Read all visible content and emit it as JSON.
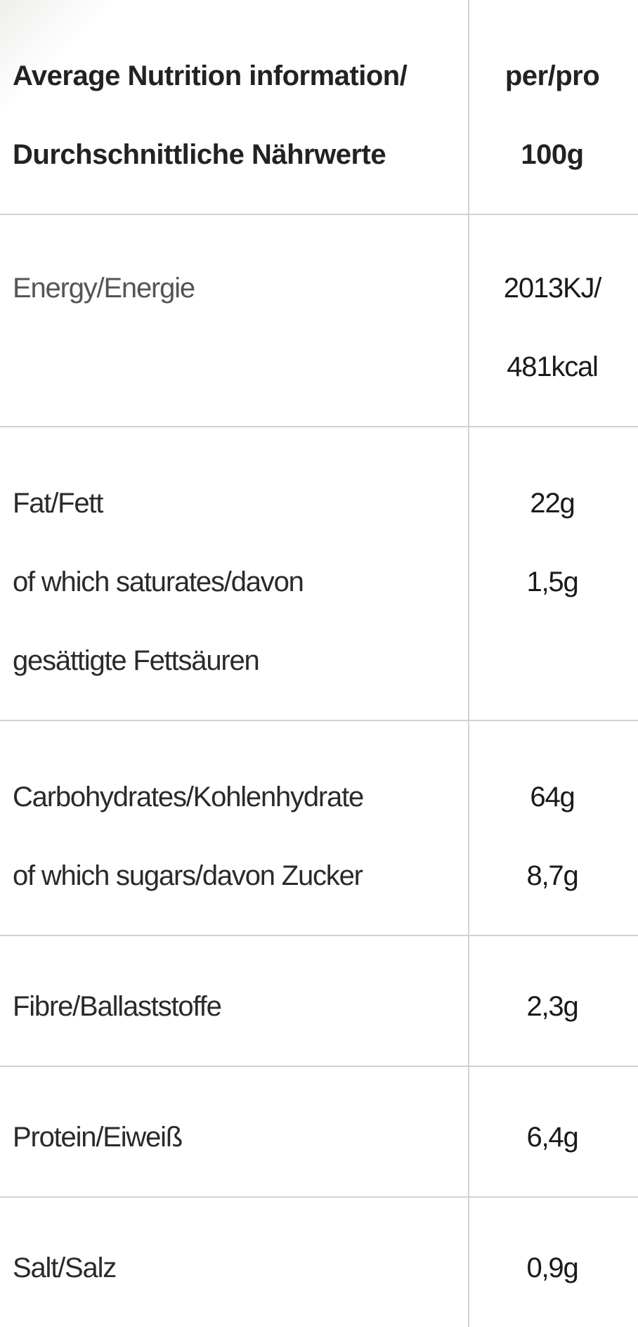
{
  "header": {
    "label_line1": "Average Nutrition information/",
    "label_line2": "Durchschnittliche Nährwerte",
    "value_line1": "per/pro",
    "value_line2": "100g"
  },
  "rows": [
    {
      "label_lines": [
        "Energy/Energie"
      ],
      "value_lines": [
        "2013KJ/",
        "481kcal"
      ]
    },
    {
      "label_lines": [
        "Fat/Fett",
        "of which saturates/davon",
        "gesättigte Fettsäuren"
      ],
      "value_lines": [
        "22g",
        "1,5g"
      ]
    },
    {
      "label_lines": [
        "Carbohydrates/Kohlenhydrate",
        "of which sugars/davon Zucker"
      ],
      "value_lines": [
        "64g",
        "8,7g"
      ]
    },
    {
      "label_lines": [
        "Fibre/Ballaststoffe"
      ],
      "value_lines": [
        "2,3g"
      ]
    },
    {
      "label_lines": [
        "Protein/Eiweiß"
      ],
      "value_lines": [
        "6,4g"
      ]
    },
    {
      "label_lines": [
        "Salt/Salz"
      ],
      "value_lines": [
        "0,9g"
      ]
    }
  ],
  "colors": {
    "text": "#1a1a1a",
    "grid": "#d2d2ce",
    "background": "#ffffff"
  }
}
